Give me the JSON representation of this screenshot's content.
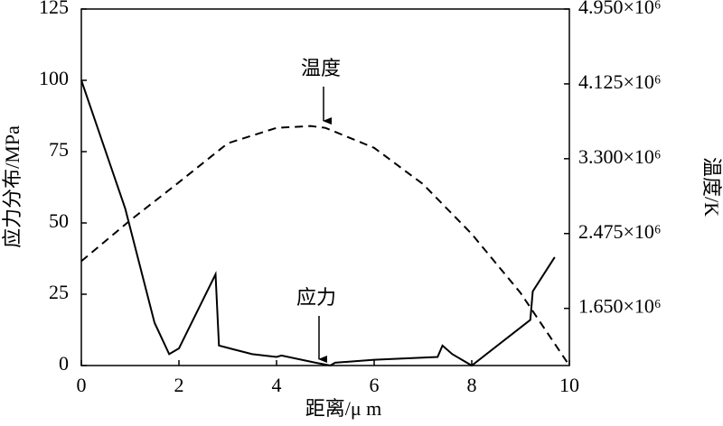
{
  "chart_data": {
    "type": "line",
    "xlabel": "距离/μ m",
    "ylabel": "应力分布/MPa",
    "y2label": "温度/K",
    "xlim": [
      0,
      10
    ],
    "xticks": [
      0,
      2,
      4,
      6,
      8,
      10
    ],
    "ylim": [
      0,
      125
    ],
    "yticks": [
      0,
      25,
      50,
      75,
      100,
      125
    ],
    "y2lim": [
      1020000,
      4950000
    ],
    "y2ticks": [
      {
        "value": 1650000,
        "label": "1.650×10⁶"
      },
      {
        "value": 2475000,
        "label": "2.475×10⁶"
      },
      {
        "value": 3300000,
        "label": "3.300×10⁶"
      },
      {
        "value": 4125000,
        "label": "4.125×10⁶"
      },
      {
        "value": 4950000,
        "label": "4.950×10⁶"
      }
    ],
    "series": [
      {
        "name": "应力",
        "color": "#000000",
        "dash": false,
        "x": [
          0,
          0.9,
          1.5,
          1.8,
          2.0,
          2.75,
          2.82,
          3.5,
          4.0,
          4.1,
          4.8,
          5.1,
          5.2,
          6,
          7.3,
          7.4,
          7.6,
          8,
          9.2,
          9.25,
          9.7
        ],
        "values": [
          100,
          55,
          15,
          4,
          6,
          32,
          7,
          4,
          3,
          3.5,
          1,
          0,
          1,
          2,
          3,
          7,
          4,
          0,
          16,
          26,
          38
        ]
      },
      {
        "name": "温度",
        "color": "#000000",
        "dash": true,
        "axis": "y2",
        "x": [
          0,
          1,
          2,
          3,
          4,
          4.7,
          5,
          6,
          7,
          8,
          9,
          10
        ],
        "values": [
          2170000,
          2620000,
          3040000,
          3470000,
          3640000,
          3660000,
          3640000,
          3420000,
          3020000,
          2470000,
          1820000,
          1020000
        ]
      }
    ]
  }
}
